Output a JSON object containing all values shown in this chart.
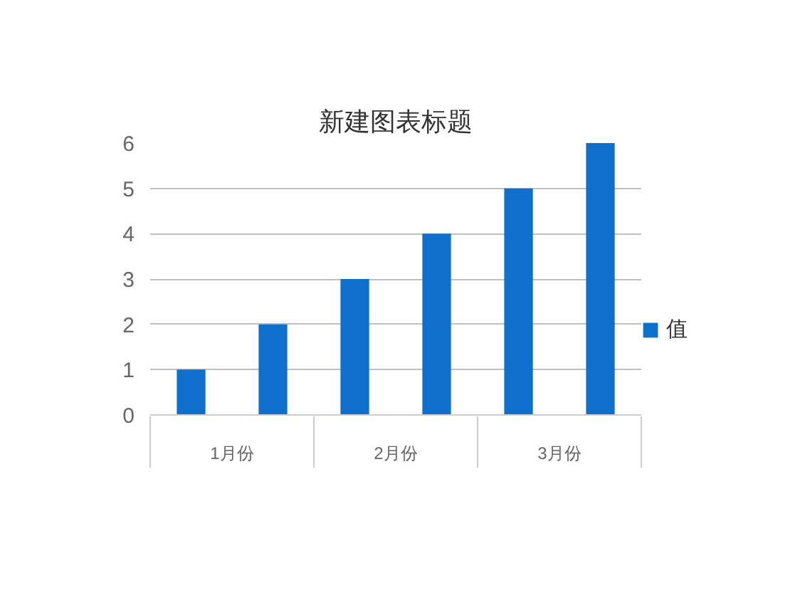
{
  "chart_data": {
    "type": "bar",
    "title": "新建图表标题",
    "categories": [
      "1月份",
      null,
      "2月份",
      null,
      "3月份",
      null
    ],
    "series": [
      {
        "name": "值",
        "color": "#0f6fcd",
        "values": [
          1,
          2,
          3,
          4,
          5,
          6
        ]
      }
    ],
    "ylim": [
      0,
      6
    ],
    "yticks": [
      0,
      1,
      2,
      3,
      4,
      5,
      6
    ],
    "grid": "y",
    "legend": "right"
  }
}
